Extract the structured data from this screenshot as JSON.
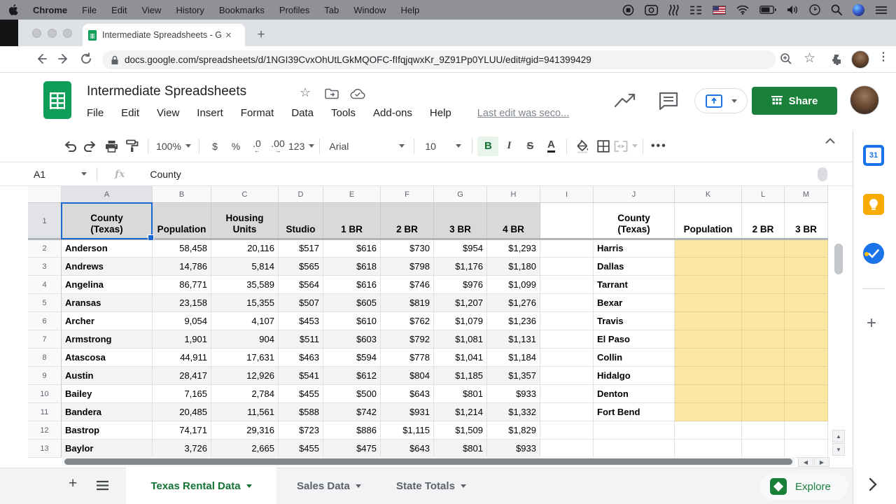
{
  "macos_menubar": {
    "items": [
      "Chrome",
      "File",
      "Edit",
      "View",
      "History",
      "Bookmarks",
      "Profiles",
      "Tab",
      "Window",
      "Help"
    ]
  },
  "browser": {
    "tab_title": "Intermediate Spreadsheets - G",
    "close_tab": "×",
    "url": "docs.google.com/spreadsheets/d/1NGI39CvxOhUtLGkMQOFC-fIfqjqwxKr_9Z91Pp0YLUU/edit#gid=941399429"
  },
  "header": {
    "title": "Intermediate Spreadsheets",
    "menus": [
      "File",
      "Edit",
      "View",
      "Insert",
      "Format",
      "Data",
      "Tools",
      "Add-ons",
      "Help"
    ],
    "last_edit": "Last edit was seco...",
    "share": "Share"
  },
  "toolbar": {
    "zoom": "100%",
    "currency": "$",
    "percent": "%",
    "decrease_decimal": ".0",
    "increase_decimal": ".00",
    "more_formats": "123",
    "font": "Arial",
    "font_size": "10",
    "bold": "B",
    "italic": "I",
    "strikethrough": "S",
    "text_color": "A",
    "more": "..."
  },
  "formula_bar": {
    "cell_ref": "A1",
    "fx": "fx",
    "value": "County"
  },
  "grid": {
    "col_letters": [
      "A",
      "B",
      "C",
      "D",
      "E",
      "F",
      "G",
      "H",
      "I",
      "J",
      "K",
      "L",
      "M"
    ],
    "header_cells": [
      "County\n(Texas)",
      "Population",
      "Housing\nUnits",
      "Studio",
      "1 BR",
      "2 BR",
      "3 BR",
      "4 BR",
      "",
      "County\n(Texas)",
      "Population",
      "2 BR",
      "3 BR"
    ],
    "rows": [
      {
        "n": "2",
        "county": "Anderson",
        "population": "58,458",
        "units": "20,116",
        "studio": "$517",
        "br1": "$616",
        "br2": "$730",
        "br3": "$954",
        "br4": "$1,293",
        "county2": "Harris"
      },
      {
        "n": "3",
        "county": "Andrews",
        "population": "14,786",
        "units": "5,814",
        "studio": "$565",
        "br1": "$618",
        "br2": "$798",
        "br3": "$1,176",
        "br4": "$1,180",
        "county2": "Dallas"
      },
      {
        "n": "4",
        "county": "Angelina",
        "population": "86,771",
        "units": "35,589",
        "studio": "$564",
        "br1": "$616",
        "br2": "$746",
        "br3": "$976",
        "br4": "$1,099",
        "county2": "Tarrant"
      },
      {
        "n": "5",
        "county": "Aransas",
        "population": "23,158",
        "units": "15,355",
        "studio": "$507",
        "br1": "$605",
        "br2": "$819",
        "br3": "$1,207",
        "br4": "$1,276",
        "county2": "Bexar"
      },
      {
        "n": "6",
        "county": "Archer",
        "population": "9,054",
        "units": "4,107",
        "studio": "$453",
        "br1": "$610",
        "br2": "$762",
        "br3": "$1,079",
        "br4": "$1,236",
        "county2": "Travis"
      },
      {
        "n": "7",
        "county": "Armstrong",
        "population": "1,901",
        "units": "904",
        "studio": "$511",
        "br1": "$603",
        "br2": "$792",
        "br3": "$1,081",
        "br4": "$1,131",
        "county2": "El Paso"
      },
      {
        "n": "8",
        "county": "Atascosa",
        "population": "44,911",
        "units": "17,631",
        "studio": "$463",
        "br1": "$594",
        "br2": "$778",
        "br3": "$1,041",
        "br4": "$1,184",
        "county2": "Collin"
      },
      {
        "n": "9",
        "county": "Austin",
        "population": "28,417",
        "units": "12,926",
        "studio": "$541",
        "br1": "$612",
        "br2": "$804",
        "br3": "$1,185",
        "br4": "$1,357",
        "county2": "Hidalgo"
      },
      {
        "n": "10",
        "county": "Bailey",
        "population": "7,165",
        "units": "2,784",
        "studio": "$455",
        "br1": "$500",
        "br2": "$643",
        "br3": "$801",
        "br4": "$933",
        "county2": "Denton"
      },
      {
        "n": "11",
        "county": "Bandera",
        "population": "20,485",
        "units": "11,561",
        "studio": "$588",
        "br1": "$742",
        "br2": "$931",
        "br3": "$1,214",
        "br4": "$1,332",
        "county2": "Fort Bend"
      },
      {
        "n": "12",
        "county": "Bastrop",
        "population": "74,171",
        "units": "29,316",
        "studio": "$723",
        "br1": "$886",
        "br2": "$1,115",
        "br3": "$1,509",
        "br4": "$1,829",
        "county2": ""
      },
      {
        "n": "13",
        "county": "Baylor",
        "population": "3,726",
        "units": "2,665",
        "studio": "$455",
        "br1": "$475",
        "br2": "$643",
        "br3": "$801",
        "br4": "$933",
        "county2": ""
      }
    ],
    "yellow_fill_last_row": 11
  },
  "sheet_tabs": {
    "tabs": [
      {
        "label": "Texas Rental Data",
        "active": true
      },
      {
        "label": "Sales Data",
        "active": false
      },
      {
        "label": "State Totals",
        "active": false
      }
    ],
    "explore": "Explore"
  },
  "colors": {
    "accent_blue": "#1a73e8",
    "sheets_green": "#0f9d58",
    "share_green": "#1a8039",
    "active_tab_green": "#137333",
    "highlight_yellow": "#fbe7a2",
    "band_gray": "#f3f3f3",
    "header_gray": "#d9d9d9"
  }
}
